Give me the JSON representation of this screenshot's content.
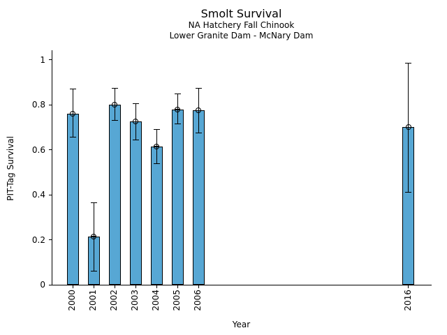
{
  "chart_data": {
    "type": "bar",
    "title": "Smolt Survival",
    "subtitle": [
      "NA Hatchery Fall Chinook",
      "Lower Granite Dam - McNary Dam"
    ],
    "xlabel": "Year",
    "ylabel": "PIT-Tag Survival",
    "categories": [
      "2000",
      "2001",
      "2002",
      "2003",
      "2004",
      "2005",
      "2006",
      "2016"
    ],
    "x": [
      2000,
      2001,
      2002,
      2003,
      2004,
      2005,
      2006,
      2016
    ],
    "values": [
      0.76,
      0.215,
      0.8,
      0.725,
      0.615,
      0.78,
      0.775,
      0.7
    ],
    "error_low": [
      0.655,
      0.06,
      0.73,
      0.645,
      0.54,
      0.715,
      0.675,
      0.41
    ],
    "error_high": [
      0.87,
      0.365,
      0.875,
      0.805,
      0.69,
      0.85,
      0.875,
      0.985
    ],
    "yticks": [
      0,
      0.2,
      0.4,
      0.6,
      0.8,
      1
    ],
    "ytick_labels": [
      "0",
      "0.2",
      "0.4",
      "0.6",
      "0.8",
      "1"
    ],
    "ylim": [
      0,
      1.043
    ],
    "xlim": [
      1999.03,
      2017.1
    ],
    "bar_width_years": 0.57,
    "grid": false,
    "legend": null,
    "marker": "circle-plus",
    "bar_color": "#57A7D4",
    "bar_edge_color": "#000000",
    "error_color": "#000000",
    "axis_color": "#000000"
  }
}
